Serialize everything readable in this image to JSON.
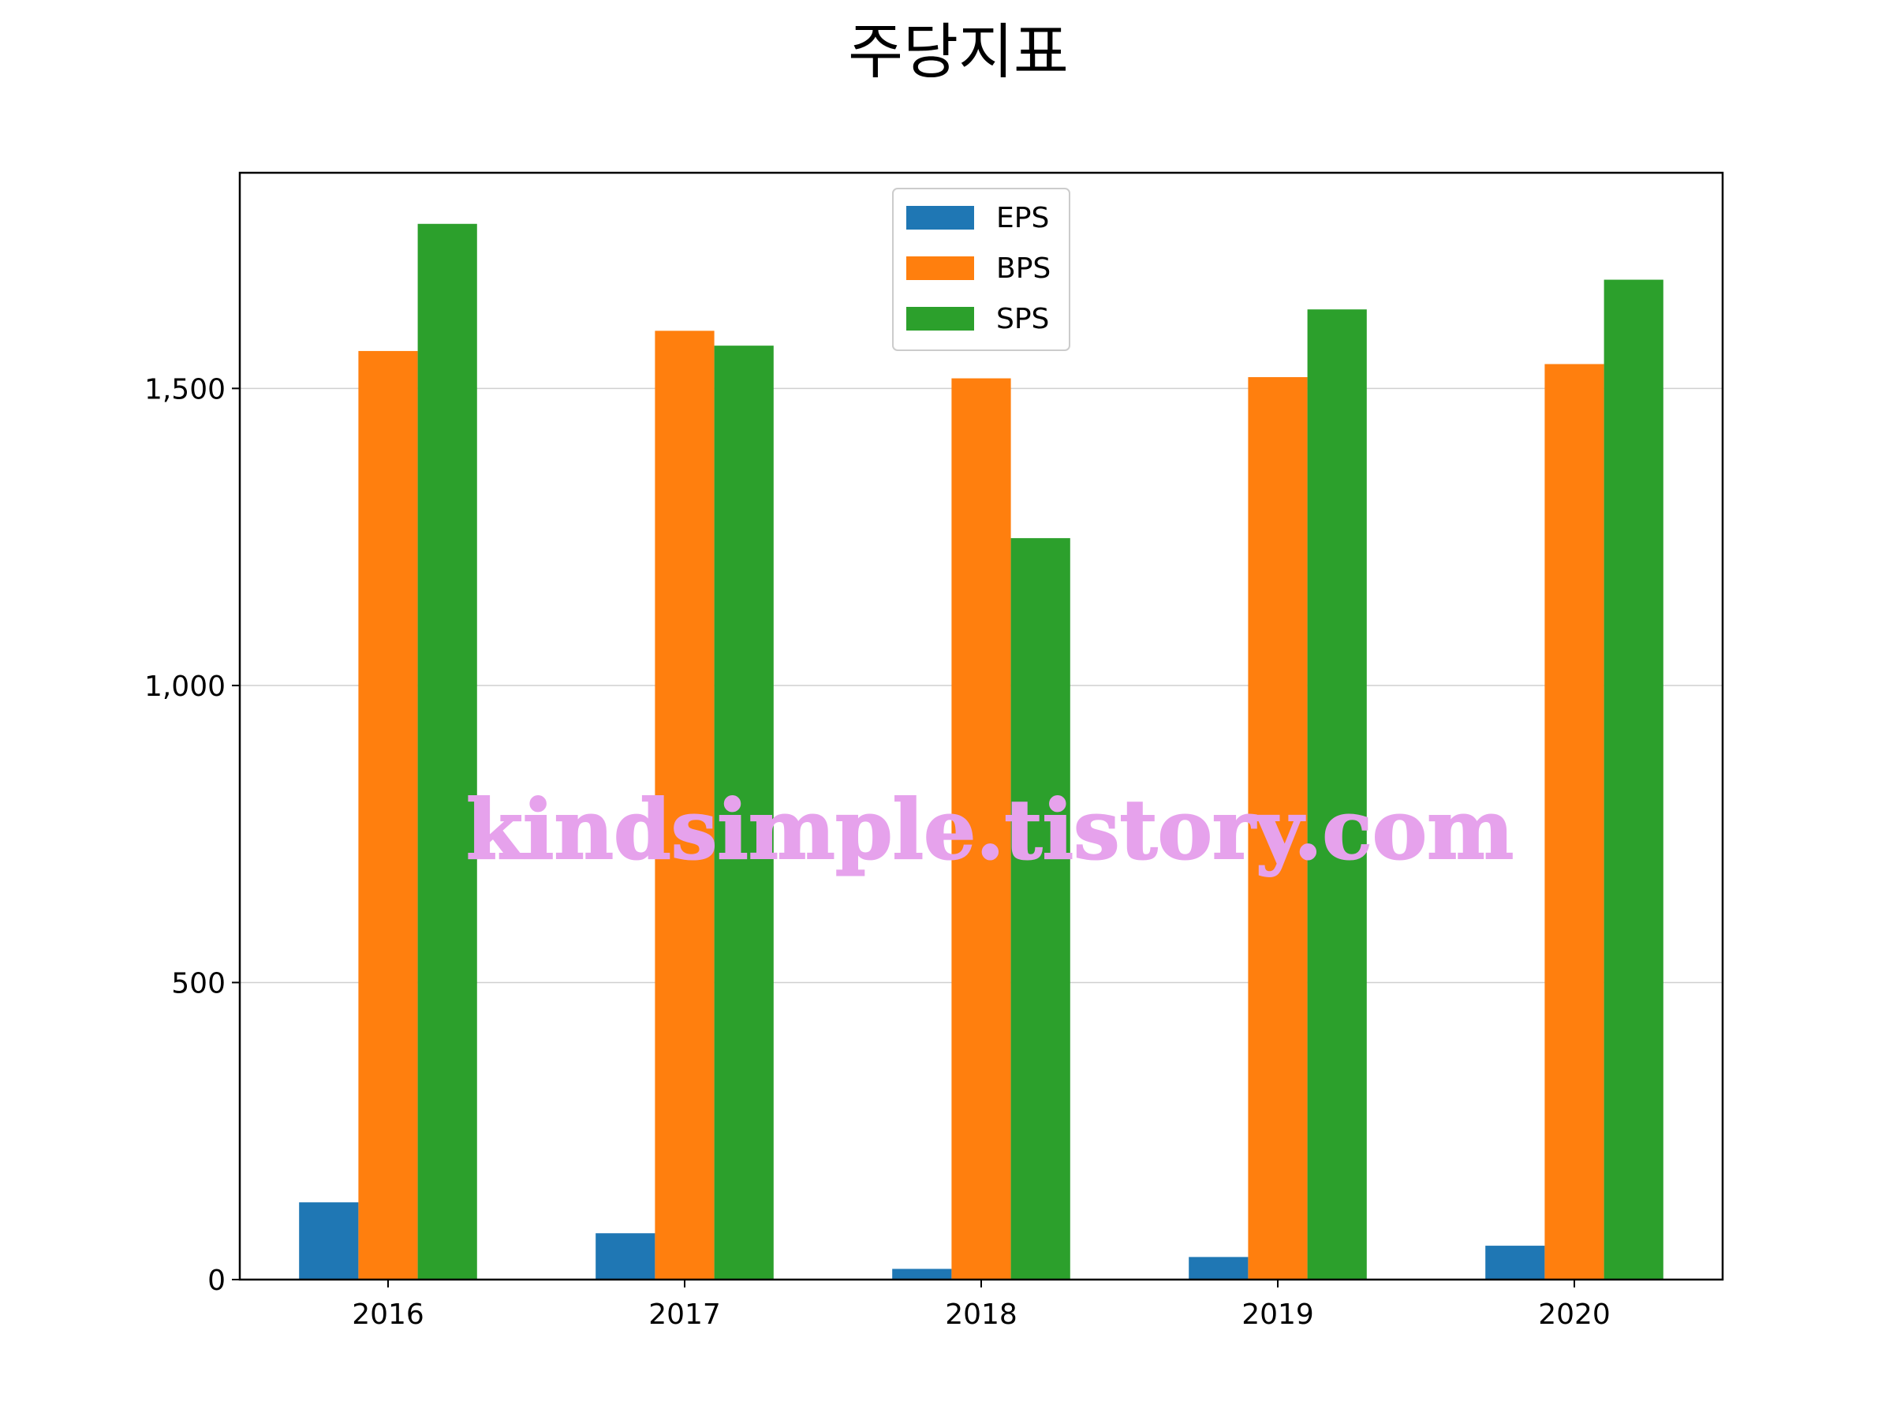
{
  "chart_data": {
    "type": "bar",
    "title": "주당지표",
    "xlabel": "",
    "ylabel": "",
    "categories": [
      "2016",
      "2017",
      "2018",
      "2019",
      "2020"
    ],
    "series": [
      {
        "name": "EPS",
        "color": "#1f77b4",
        "values": [
          130,
          78,
          18,
          38,
          57
        ]
      },
      {
        "name": "BPS",
        "color": "#ff7f0e",
        "values": [
          1563,
          1597,
          1517,
          1519,
          1541
        ]
      },
      {
        "name": "SPS",
        "color": "#2ca02c",
        "values": [
          1777,
          1572,
          1248,
          1633,
          1683
        ]
      }
    ],
    "ylim": [
      0,
      1863
    ],
    "yticks": [
      0,
      500,
      1000,
      1500
    ],
    "ytick_labels": [
      "0",
      "500",
      "1,000",
      "1,500"
    ],
    "grid": "y",
    "legend_position": "top-center"
  },
  "watermark": "kindsimple.tistory.com"
}
